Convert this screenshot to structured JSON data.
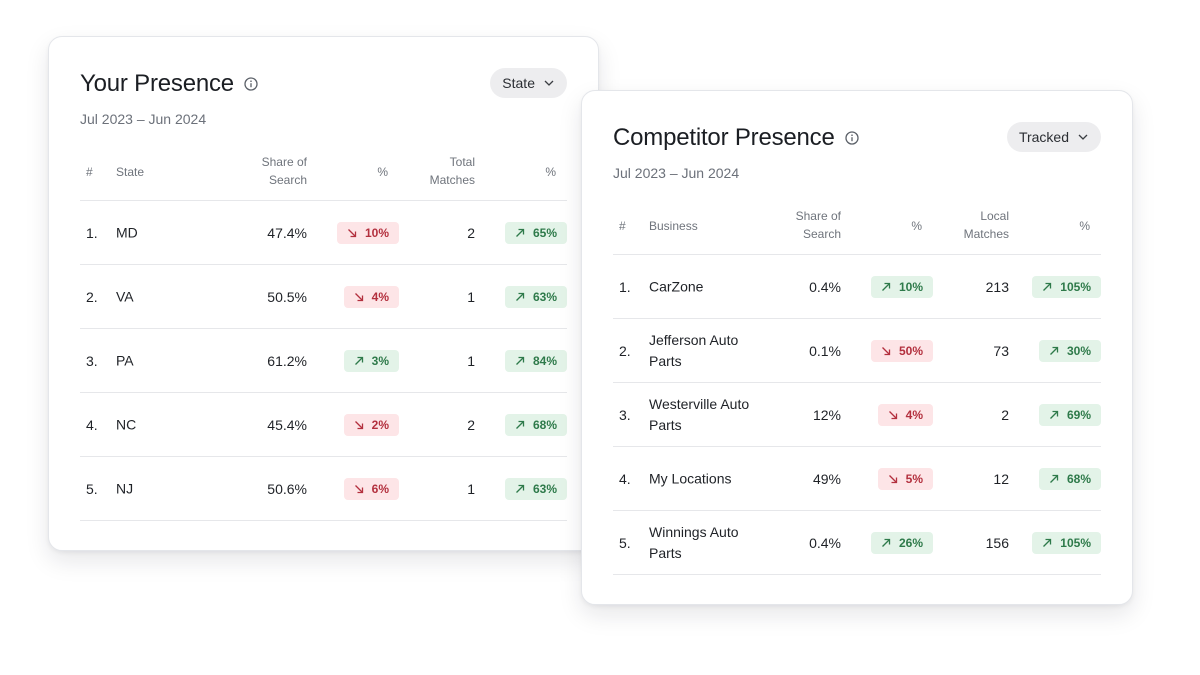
{
  "left_card": {
    "title": "Your Presence",
    "date_range": "Jul 2023 – Jun 2024",
    "dropdown_label": "State",
    "headers": {
      "num": "#",
      "name": "State",
      "share_l1": "Share of",
      "share_l2": "Search",
      "pct1": "%",
      "matches_l1": "Total",
      "matches_l2": "Matches",
      "pct2": "%"
    },
    "rows": [
      {
        "num": "1.",
        "name": "MD",
        "share": "47.4%",
        "pct1": "10%",
        "pct1_dir": "down",
        "matches": "2",
        "pct2": "65%",
        "pct2_dir": "up"
      },
      {
        "num": "2.",
        "name": "VA",
        "share": "50.5%",
        "pct1": "4%",
        "pct1_dir": "down",
        "matches": "1",
        "pct2": "63%",
        "pct2_dir": "up"
      },
      {
        "num": "3.",
        "name": "PA",
        "share": "61.2%",
        "pct1": "3%",
        "pct1_dir": "up",
        "matches": "1",
        "pct2": "84%",
        "pct2_dir": "up"
      },
      {
        "num": "4.",
        "name": "NC",
        "share": "45.4%",
        "pct1": "2%",
        "pct1_dir": "down",
        "matches": "2",
        "pct2": "68%",
        "pct2_dir": "up"
      },
      {
        "num": "5.",
        "name": "NJ",
        "share": "50.6%",
        "pct1": "6%",
        "pct1_dir": "down",
        "matches": "1",
        "pct2": "63%",
        "pct2_dir": "up"
      }
    ]
  },
  "right_card": {
    "title": "Competitor Presence",
    "date_range": "Jul 2023 – Jun 2024",
    "dropdown_label": "Tracked",
    "headers": {
      "num": "#",
      "name": "Business",
      "share_l1": "Share of",
      "share_l2": "Search",
      "pct1": "%",
      "matches_l1": "Local",
      "matches_l2": "Matches",
      "pct2": "%"
    },
    "rows": [
      {
        "num": "1.",
        "name_l1": "CarZone",
        "name_l2": "",
        "share": "0.4%",
        "pct1": "10%",
        "pct1_dir": "up",
        "matches": "213",
        "pct2": "105%",
        "pct2_dir": "up"
      },
      {
        "num": "2.",
        "name_l1": "Jefferson Auto",
        "name_l2": "Parts",
        "share": "0.1%",
        "pct1": "50%",
        "pct1_dir": "down",
        "matches": "73",
        "pct2": "30%",
        "pct2_dir": "up"
      },
      {
        "num": "3.",
        "name_l1": "Westerville Auto",
        "name_l2": "Parts",
        "share": "12%",
        "pct1": "4%",
        "pct1_dir": "down",
        "matches": "2",
        "pct2": "69%",
        "pct2_dir": "up"
      },
      {
        "num": "4.",
        "name_l1": "My Locations",
        "name_l2": "",
        "share": "49%",
        "pct1": "5%",
        "pct1_dir": "down",
        "matches": "12",
        "pct2": "68%",
        "pct2_dir": "up"
      },
      {
        "num": "5.",
        "name_l1": "Winnings Auto",
        "name_l2": "Parts",
        "share": "0.4%",
        "pct1": "26%",
        "pct1_dir": "up",
        "matches": "156",
        "pct2": "105%",
        "pct2_dir": "up"
      }
    ]
  },
  "colors": {
    "up_bg": "#e3f3e8",
    "up_fg": "#2e7a4a",
    "down_bg": "#fde5e7",
    "down_fg": "#b3303e"
  },
  "icons": {
    "info": "info-icon",
    "dropdown": "chevron-down-icon",
    "up": "arrow-up-right-icon",
    "down": "arrow-down-right-icon"
  }
}
